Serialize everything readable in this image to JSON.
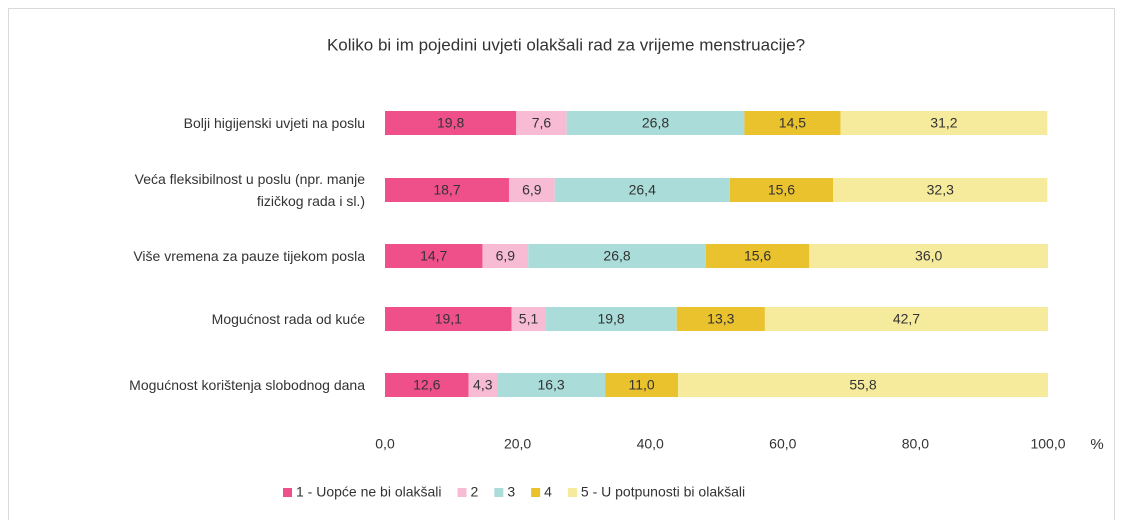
{
  "chart_data": {
    "type": "stacked_barh",
    "title": "Koliko bi im pojedini uvjeti olakšali rad za vrijeme menstruacije?",
    "categories": [
      "Bolji higijenski uvjeti na poslu",
      "Veća fleksibilnost u poslu (npr. manje\nfizičkog rada i sl.)",
      "Više vremena za pauze tijekom posla",
      "Mogućnost rada od kuće",
      "Mogućnost korištenja slobodnog dana"
    ],
    "series": [
      {
        "name": "1 - Uopće ne bi olakšali",
        "color": "#f0508a",
        "values": [
          19.8,
          18.7,
          14.7,
          19.1,
          12.6
        ],
        "value_labels": [
          "19,8",
          "18,7",
          "14,7",
          "19,1",
          "12,6"
        ]
      },
      {
        "name": "2",
        "color": "#f7bcd3",
        "values": [
          7.6,
          6.9,
          6.9,
          5.1,
          4.3
        ],
        "value_labels": [
          "7,6",
          "6,9",
          "6,9",
          "5,1",
          "4,3"
        ]
      },
      {
        "name": "3",
        "color": "#aadcd9",
        "values": [
          26.8,
          26.4,
          26.8,
          19.8,
          16.3
        ],
        "value_labels": [
          "26,8",
          "26,4",
          "26,8",
          "19,8",
          "16,3"
        ]
      },
      {
        "name": "4",
        "color": "#e9c22e",
        "values": [
          14.5,
          15.6,
          15.6,
          13.3,
          11.0
        ],
        "value_labels": [
          "14,5",
          "15,6",
          "15,6",
          "13,3",
          "11,0"
        ]
      },
      {
        "name": "5 - U potpunosti bi olakšali",
        "color": "#f6eb9c",
        "values": [
          31.2,
          32.3,
          36.0,
          42.7,
          55.8
        ],
        "value_labels": [
          "31,2",
          "32,3",
          "36,0",
          "42,7",
          "55,8"
        ]
      }
    ],
    "xlim": [
      0,
      100
    ],
    "xticks": [
      {
        "value": 0,
        "label": "0,0"
      },
      {
        "value": 20,
        "label": "20,0"
      },
      {
        "value": 40,
        "label": "40,0"
      },
      {
        "value": 60,
        "label": "60,0"
      },
      {
        "value": 80,
        "label": "80,0"
      },
      {
        "value": 100,
        "label": "100,0"
      }
    ],
    "x_unit": "%",
    "grid": false,
    "legend": "bottom"
  }
}
